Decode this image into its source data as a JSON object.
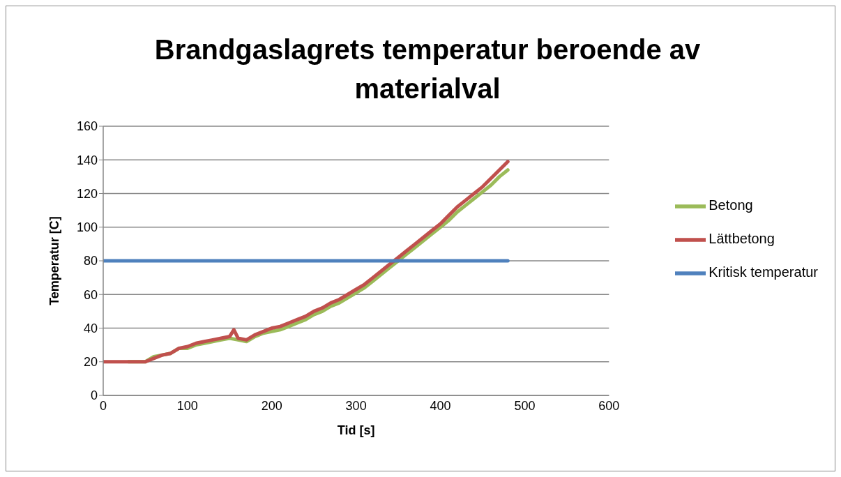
{
  "chart_data": {
    "type": "line",
    "title": "Brandgaslagrets temperatur beroende av materialval",
    "xlabel": "Tid [s]",
    "ylabel": "Temperatur [C]",
    "xlim": [
      0,
      600
    ],
    "xticks": [
      0,
      100,
      200,
      300,
      400,
      500,
      600
    ],
    "ylim": [
      0,
      160
    ],
    "yticks": [
      0,
      20,
      40,
      60,
      80,
      100,
      120,
      140,
      160
    ],
    "grid": "y",
    "legend": "right",
    "marker": "none",
    "line_style": "solid",
    "series": [
      {
        "name": "Betong",
        "color": "#9bbb59",
        "x": [
          30,
          40,
          50,
          60,
          70,
          80,
          90,
          100,
          110,
          120,
          130,
          140,
          150,
          160,
          170,
          180,
          190,
          200,
          210,
          220,
          230,
          240,
          250,
          260,
          270,
          280,
          290,
          300,
          310,
          320,
          330,
          340,
          350,
          360,
          370,
          380,
          390,
          400,
          410,
          420,
          430,
          440,
          450,
          460,
          470,
          480
        ],
        "values": [
          20,
          20,
          20,
          23,
          24,
          25,
          28,
          28,
          30,
          31,
          32,
          33,
          34,
          33,
          32,
          35,
          37,
          38,
          39,
          41,
          43,
          45,
          48,
          50,
          53,
          55,
          58,
          61,
          64,
          68,
          72,
          76,
          80,
          84,
          88,
          92,
          96,
          100,
          104,
          109,
          113,
          117,
          121,
          125,
          130,
          134
        ]
      },
      {
        "name": "Lättbetong",
        "color": "#c0504d",
        "x": [
          0,
          10,
          20,
          30,
          40,
          50,
          60,
          70,
          80,
          90,
          100,
          110,
          120,
          130,
          140,
          150,
          155,
          160,
          170,
          180,
          190,
          200,
          210,
          220,
          230,
          240,
          250,
          260,
          270,
          280,
          290,
          300,
          310,
          320,
          330,
          340,
          350,
          360,
          370,
          380,
          390,
          400,
          410,
          420,
          430,
          440,
          450,
          460,
          470,
          480
        ],
        "values": [
          20,
          20,
          20,
          20,
          20,
          20,
          22,
          24,
          25,
          28,
          29,
          31,
          32,
          33,
          34,
          35,
          39,
          34,
          33,
          36,
          38,
          40,
          41,
          43,
          45,
          47,
          50,
          52,
          55,
          57,
          60,
          63,
          66,
          70,
          74,
          78,
          82,
          86,
          90,
          94,
          98,
          102,
          107,
          112,
          116,
          120,
          124,
          129,
          134,
          139
        ]
      },
      {
        "name": "Kritisk temperatur",
        "color": "#4f81bd",
        "x": [
          0,
          480
        ],
        "values": [
          80,
          80
        ]
      }
    ]
  }
}
